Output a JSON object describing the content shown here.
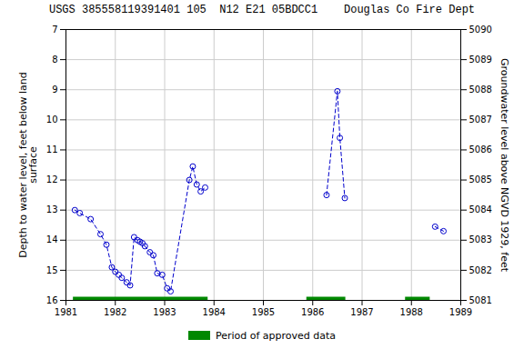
{
  "chart_data": {
    "type": "line",
    "title": "USGS 385558119391401 105  N12 E21 05BDCC1    Douglas Co Fire Dept",
    "ylabel": "Depth to water level, feet below land\nsurface",
    "y2label": "Groundwater level above NGVD 1929, feet",
    "xlim": [
      1981,
      1989
    ],
    "ylim": [
      16,
      7
    ],
    "y2lim": [
      5081,
      5090
    ],
    "xticks": [
      1981,
      1982,
      1983,
      1984,
      1985,
      1986,
      1987,
      1988,
      1989
    ],
    "yticks": [
      7,
      8,
      9,
      10,
      11,
      12,
      13,
      14,
      15,
      16
    ],
    "y2ticks": [
      5081,
      5082,
      5083,
      5084,
      5085,
      5086,
      5087,
      5088,
      5089,
      5090
    ],
    "grid": true,
    "legend": "bottom",
    "series": [
      {
        "type": "line",
        "color": "#0000CC",
        "marker": "o",
        "line_style": "dashed",
        "x": [
          1981.18,
          1981.28,
          1981.5,
          1981.7,
          1981.82,
          1981.93,
          1982.0,
          1982.07,
          1982.13,
          1982.23,
          1982.3,
          1982.38,
          1982.45,
          1982.5,
          1982.55,
          1982.6,
          1982.7,
          1982.77,
          1982.85,
          1982.95,
          1983.05,
          1983.12,
          1983.5,
          1983.57,
          1983.65,
          1983.73,
          1983.82,
          null,
          1986.28,
          1986.5,
          1986.55,
          1986.65,
          null,
          1988.48,
          1988.65
        ],
        "values": [
          13.0,
          13.1,
          13.3,
          13.8,
          14.15,
          14.9,
          15.05,
          15.15,
          15.25,
          15.4,
          15.5,
          13.9,
          14.0,
          14.05,
          14.1,
          14.2,
          14.4,
          14.5,
          15.1,
          15.15,
          15.6,
          15.7,
          12.0,
          11.55,
          12.15,
          12.38,
          12.25,
          null,
          12.5,
          9.05,
          10.6,
          12.6,
          null,
          13.55,
          13.7
        ]
      },
      {
        "name": "Period of approved data",
        "type": "span",
        "color": "#008800",
        "periods": [
          [
            1981.15,
            1983.88
          ],
          [
            1985.88,
            1986.67
          ],
          [
            1987.88,
            1988.38
          ]
        ]
      }
    ]
  }
}
